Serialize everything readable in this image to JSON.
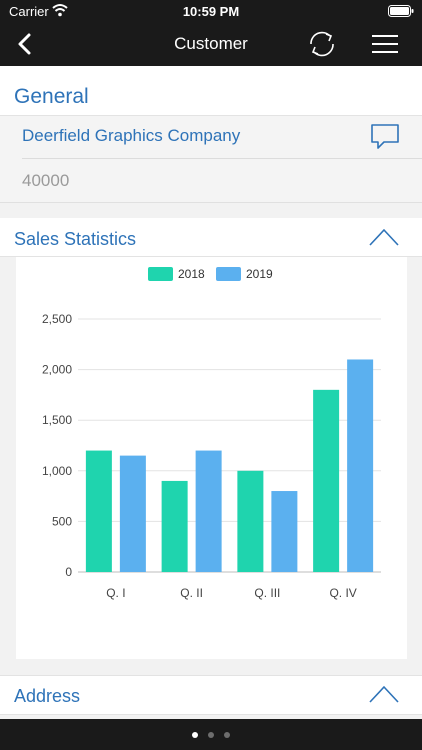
{
  "status_bar": {
    "carrier": "Carrier",
    "time": "10:59 PM"
  },
  "nav": {
    "title": "Customer",
    "back_icon": "chevron-left-icon",
    "refresh_icon": "refresh-icon",
    "menu_icon": "hamburger-menu-icon"
  },
  "general": {
    "heading": "General",
    "company_name": "Deerfield Graphics Company",
    "amount": "40000",
    "comment_icon": "speech-bubble-icon"
  },
  "sales": {
    "heading": "Sales Statistics"
  },
  "address": {
    "heading": "Address"
  },
  "pager": {
    "pages": 3,
    "active_index": 0
  },
  "colors": {
    "accent": "#2e73b8",
    "series_2018": "#1fd4ae",
    "series_2019": "#5bb0ef",
    "bar_background": "#1a1a1a"
  },
  "chart_data": {
    "type": "bar",
    "categories": [
      "Q. I",
      "Q. II",
      "Q. III",
      "Q. IV"
    ],
    "series": [
      {
        "name": "2018",
        "values": [
          1200,
          900,
          1000,
          1800
        ]
      },
      {
        "name": "2019",
        "values": [
          1150,
          1200,
          800,
          2100
        ]
      }
    ],
    "yticks": [
      "0",
      "500",
      "1,000",
      "1,500",
      "2,000",
      "2,500"
    ],
    "ylim": [
      0,
      2500
    ],
    "grid": true,
    "legend_position": "top-center"
  }
}
